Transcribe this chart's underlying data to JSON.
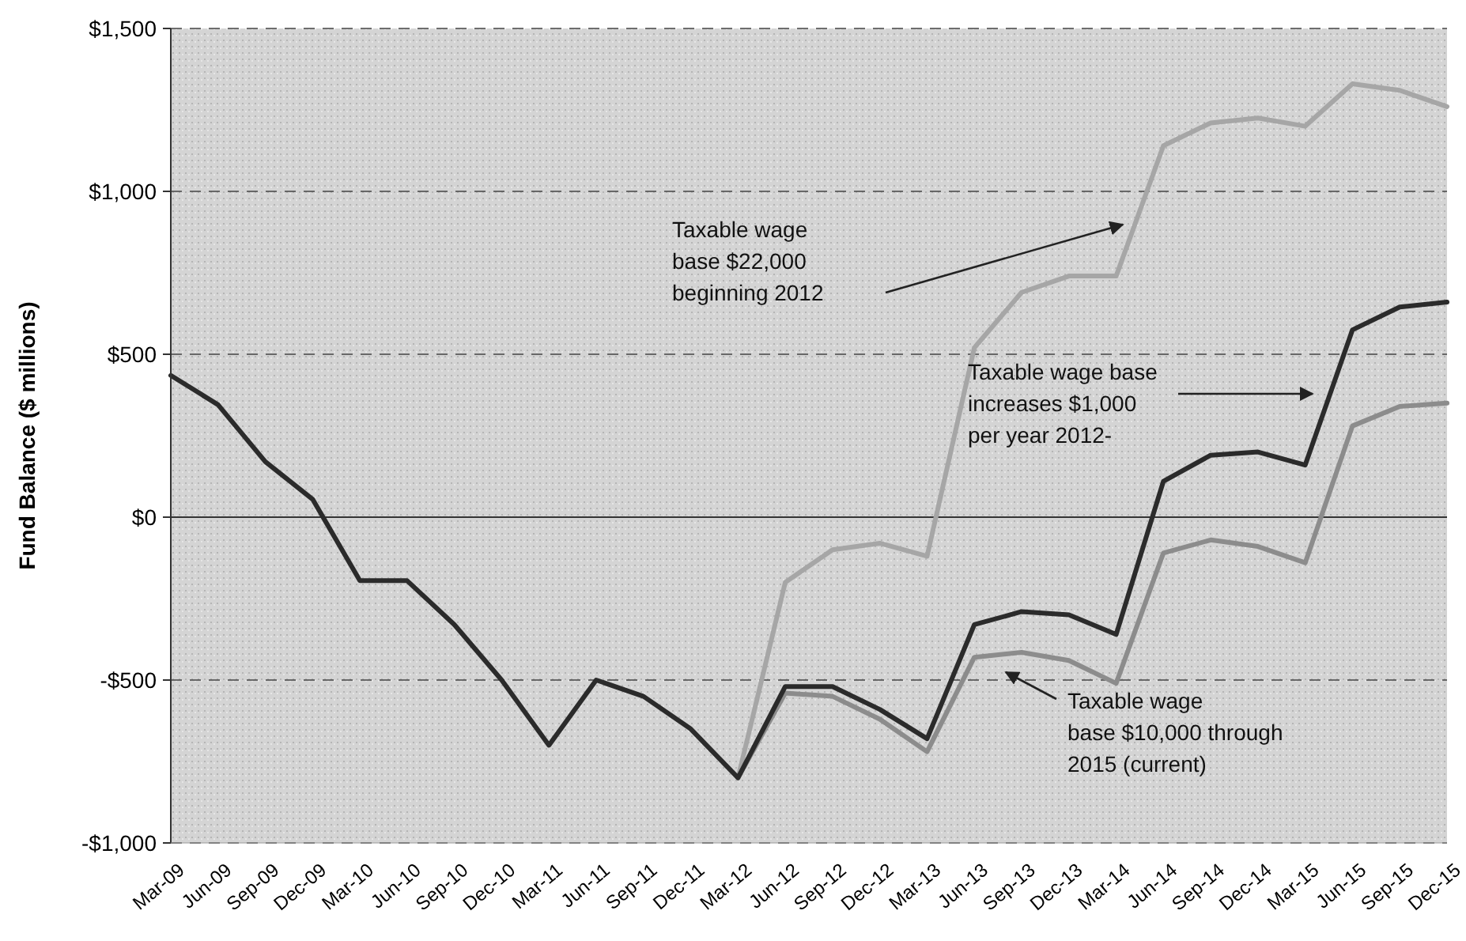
{
  "chart_data": {
    "type": "line",
    "ylabel": "Fund Balance ($ millions)",
    "categories": [
      "Mar-09",
      "Jun-09",
      "Sep-09",
      "Dec-09",
      "Mar-10",
      "Jun-10",
      "Sep-10",
      "Dec-10",
      "Mar-11",
      "Jun-11",
      "Sep-11",
      "Dec-11",
      "Mar-12",
      "Jun-12",
      "Sep-12",
      "Dec-12",
      "Mar-13",
      "Jun-13",
      "Sep-13",
      "Dec-13",
      "Mar-14",
      "Jun-14",
      "Sep-14",
      "Dec-14",
      "Mar-15",
      "Jun-15",
      "Sep-15",
      "Dec-15"
    ],
    "series": [
      {
        "color": "#a6a6a6",
        "values": [
          null,
          null,
          null,
          null,
          null,
          null,
          null,
          null,
          null,
          null,
          null,
          null,
          -800,
          -200,
          -100,
          -80,
          -120,
          520,
          690,
          740,
          740,
          1140,
          1210,
          1225,
          1200,
          1330,
          1310,
          1260
        ]
      },
      {
        "color": "#8c8c8c",
        "values": [
          null,
          null,
          null,
          null,
          null,
          null,
          null,
          null,
          null,
          null,
          null,
          null,
          -800,
          -540,
          -550,
          -620,
          -720,
          -430,
          -415,
          -440,
          -510,
          -110,
          -70,
          -90,
          -140,
          280,
          340,
          350
        ]
      },
      {
        "color": "#2b2b2b",
        "values": [
          435,
          345,
          170,
          55,
          -195,
          -195,
          -330,
          -500,
          -700,
          -500,
          -550,
          -650,
          -800,
          -520,
          -520,
          -590,
          -680,
          -330,
          -290,
          -300,
          -360,
          110,
          190,
          200,
          160,
          575,
          645,
          660
        ]
      }
    ],
    "ylim": [
      -1000,
      1500
    ],
    "yticks": [
      {
        "value": -1000,
        "label": "-$1,000"
      },
      {
        "value": -500,
        "label": "-$500"
      },
      {
        "value": 0,
        "label": "$0"
      },
      {
        "value": 500,
        "label": "$500"
      },
      {
        "value": 1000,
        "label": "$1,000"
      },
      {
        "value": 1500,
        "label": "$1,500"
      }
    ],
    "grid": "y",
    "line_style": "solid",
    "marker": "none",
    "ref_lines": [
      {
        "axis": "y",
        "value": 0,
        "color": "#333333",
        "line_style": "solid"
      }
    ],
    "annotations": [
      "Taxable wage base $22,000 beginning 2012",
      "Taxable wage base increases $1,000 per year 2012-",
      "Taxable wage base  $10,000 through 2015 (current)"
    ]
  }
}
